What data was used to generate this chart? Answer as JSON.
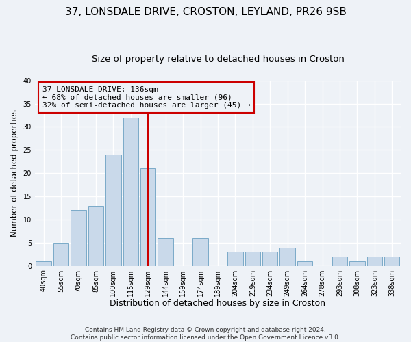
{
  "title": "37, LONSDALE DRIVE, CROSTON, LEYLAND, PR26 9SB",
  "subtitle": "Size of property relative to detached houses in Croston",
  "xlabel": "Distribution of detached houses by size in Croston",
  "ylabel": "Number of detached properties",
  "bar_labels": [
    "40sqm",
    "55sqm",
    "70sqm",
    "85sqm",
    "100sqm",
    "115sqm",
    "129sqm",
    "144sqm",
    "159sqm",
    "174sqm",
    "189sqm",
    "204sqm",
    "219sqm",
    "234sqm",
    "249sqm",
    "264sqm",
    "278sqm",
    "293sqm",
    "308sqm",
    "323sqm",
    "338sqm"
  ],
  "bar_values": [
    1,
    5,
    12,
    13,
    24,
    32,
    21,
    6,
    0,
    6,
    0,
    3,
    3,
    3,
    4,
    1,
    0,
    2,
    1,
    2,
    2
  ],
  "bar_color": "#c9d9ea",
  "bar_edge_color": "#7aaac8",
  "ylim": [
    0,
    40
  ],
  "yticks": [
    0,
    5,
    10,
    15,
    20,
    25,
    30,
    35,
    40
  ],
  "vline_x_index": 6.0,
  "vline_color": "#cc0000",
  "annotation_line1": "37 LONSDALE DRIVE: 136sqm",
  "annotation_line2": "← 68% of detached houses are smaller (96)",
  "annotation_line3": "32% of semi-detached houses are larger (45) →",
  "footer_line1": "Contains HM Land Registry data © Crown copyright and database right 2024.",
  "footer_line2": "Contains public sector information licensed under the Open Government Licence v3.0.",
  "background_color": "#eef2f7",
  "grid_color": "#ffffff",
  "title_fontsize": 11,
  "subtitle_fontsize": 9.5,
  "xlabel_fontsize": 9,
  "ylabel_fontsize": 8.5,
  "tick_fontsize": 7,
  "annotation_fontsize": 8,
  "footer_fontsize": 6.5
}
